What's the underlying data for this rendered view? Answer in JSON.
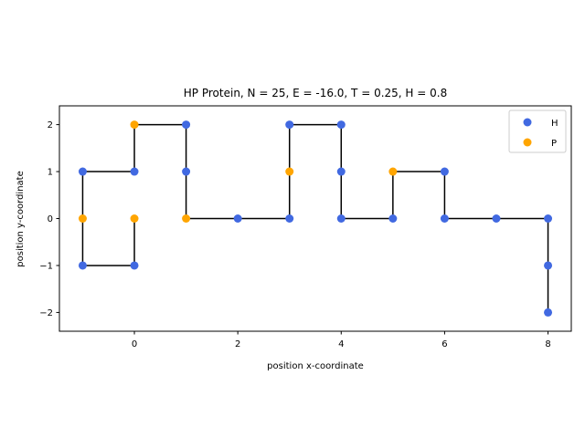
{
  "chart_data": {
    "type": "scatter",
    "title": "HP Protein, N = 25, E = -16.0, T = 0.25, H = 0.8",
    "xlabel": "position x-coordinate",
    "ylabel": "position y-coordinate",
    "xlim": [
      -1.45,
      8.45
    ],
    "ylim": [
      -2.4,
      2.4
    ],
    "xticks": [
      0,
      2,
      4,
      6,
      8
    ],
    "yticks": [
      -2,
      -1,
      0,
      1,
      2
    ],
    "xtick_labels": [
      "0",
      "2",
      "4",
      "6",
      "8"
    ],
    "ytick_labels": [
      "−2",
      "−1",
      "0",
      "1",
      "2"
    ],
    "grid": false,
    "legend_position": "top-right",
    "chain": {
      "color": "#000000",
      "points": [
        {
          "x": -1,
          "y": 0,
          "type": "P"
        },
        {
          "x": -1,
          "y": 1,
          "type": "H"
        },
        {
          "x": 0,
          "y": 1,
          "type": "H"
        },
        {
          "x": 0,
          "y": 2,
          "type": "P"
        },
        {
          "x": 1,
          "y": 2,
          "type": "H"
        },
        {
          "x": 1,
          "y": 1,
          "type": "H"
        },
        {
          "x": 1,
          "y": 0,
          "type": "P"
        },
        {
          "x": 2,
          "y": 0,
          "type": "H"
        },
        {
          "x": 3,
          "y": 0,
          "type": "H"
        },
        {
          "x": 3,
          "y": 1,
          "type": "P"
        },
        {
          "x": 3,
          "y": 2,
          "type": "H"
        },
        {
          "x": 4,
          "y": 2,
          "type": "H"
        },
        {
          "x": 4,
          "y": 1,
          "type": "H"
        },
        {
          "x": 4,
          "y": 0,
          "type": "H"
        },
        {
          "x": 5,
          "y": 0,
          "type": "H"
        },
        {
          "x": 5,
          "y": 1,
          "type": "P"
        },
        {
          "x": 6,
          "y": 1,
          "type": "H"
        },
        {
          "x": 6,
          "y": 0,
          "type": "H"
        },
        {
          "x": 7,
          "y": 0,
          "type": "H"
        },
        {
          "x": 8,
          "y": 0,
          "type": "H"
        },
        {
          "x": 8,
          "y": -1,
          "type": "H"
        },
        {
          "x": 8,
          "y": -2,
          "type": "H"
        },
        {
          "x": -1,
          "y": -1,
          "type": "H"
        },
        {
          "x": 0,
          "y": -1,
          "type": "H"
        },
        {
          "x": 0,
          "y": 0,
          "type": "P"
        }
      ],
      "path_order": [
        24,
        23,
        22,
        0,
        1,
        2,
        3,
        4,
        5,
        6,
        7,
        8,
        9,
        10,
        11,
        12,
        13,
        14,
        15,
        16,
        17,
        18,
        19,
        20,
        21
      ]
    },
    "series": [
      {
        "name": "H",
        "color": "#4169e1"
      },
      {
        "name": "P",
        "color": "#ffa500"
      }
    ]
  }
}
